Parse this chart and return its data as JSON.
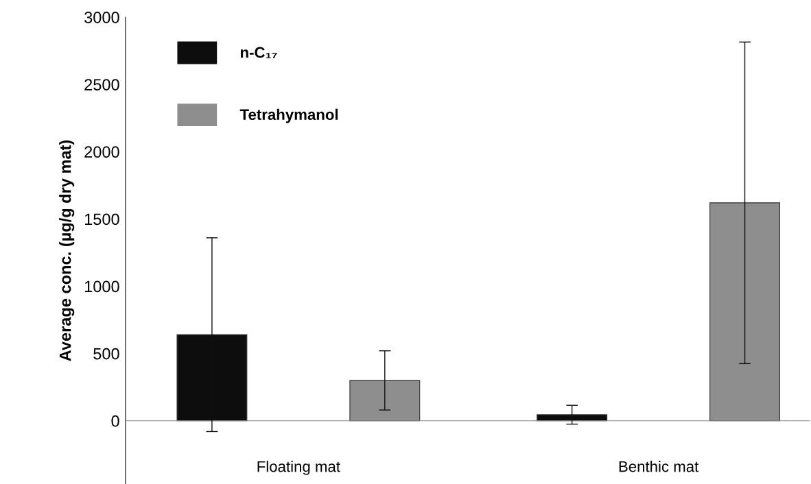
{
  "chart_data": {
    "type": "bar",
    "ylabel": "Average conc. (µg/g dry mat)",
    "categories": [
      "Floating mat",
      "Benthic mat"
    ],
    "series": [
      {
        "name": "n-C₁₇",
        "color": "#0d0d0d",
        "values": [
          640,
          45
        ],
        "errors": [
          720,
          70
        ]
      },
      {
        "name": "Tetrahymanol",
        "color": "#8e8e8e",
        "values": [
          300,
          1620
        ],
        "errors": [
          220,
          1195
        ]
      }
    ],
    "ylim": [
      -470,
      3000
    ],
    "yticks": [
      0,
      500,
      1000,
      1500,
      2000,
      2500,
      3000
    ],
    "legend": "top left"
  }
}
